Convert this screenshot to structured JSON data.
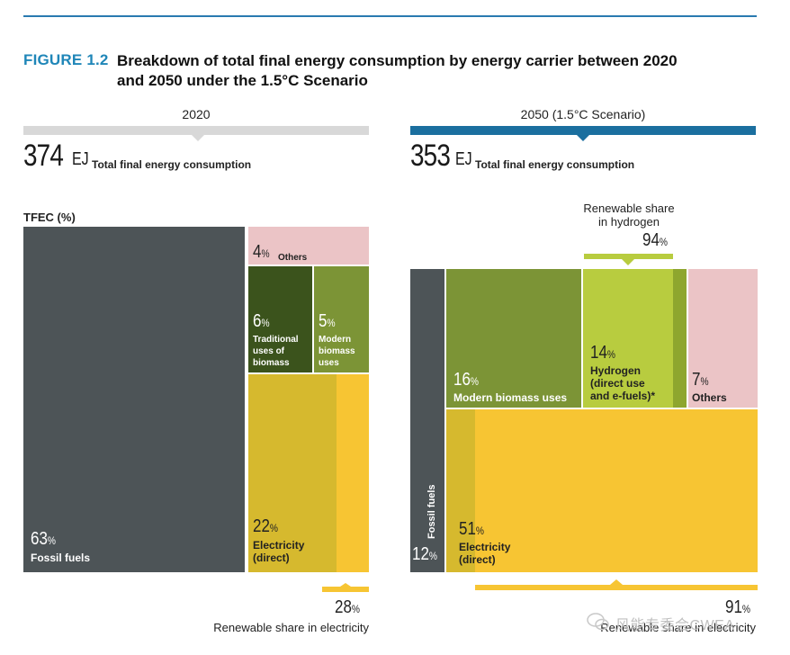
{
  "figure": {
    "label": "FIGURE 1.2",
    "title": "Breakdown of total final energy consumption by energy carrier between 2020 and 2050 under the 1.5°C Scenario"
  },
  "chart_data": [
    {
      "type": "treemap",
      "column_title": "2020",
      "total_value": "374",
      "total_unit": "EJ",
      "total_label": "Total final energy consumption",
      "axis_label": "TFEC (%)",
      "segments": [
        {
          "name": "Fossil fuels",
          "value": 63,
          "pct_text": "63"
        },
        {
          "name": "Others",
          "value": 4,
          "pct_text": "4"
        },
        {
          "name": "Traditional uses of biomass",
          "value": 6,
          "pct_text": "6"
        },
        {
          "name": "Modern biomass uses",
          "value": 5,
          "pct_text": "5"
        },
        {
          "name": "Electricity (direct)",
          "value": 22,
          "pct_text": "22"
        }
      ],
      "renewable_share_electricity": {
        "value": 28,
        "pct_text": "28",
        "label": "Renewable share in electricity"
      }
    },
    {
      "type": "treemap",
      "column_title": "2050 (1.5°C Scenario)",
      "total_value": "353",
      "total_unit": "EJ",
      "total_label": "Total final energy consumption",
      "segments": [
        {
          "name": "Fossil fuels",
          "value": 12,
          "pct_text": "12"
        },
        {
          "name": "Modern biomass uses",
          "value": 16,
          "pct_text": "16"
        },
        {
          "name": "Hydrogen (direct use and e-fuels)*",
          "value": 14,
          "pct_text": "14"
        },
        {
          "name": "Others",
          "value": 7,
          "pct_text": "7"
        },
        {
          "name": "Electricity (direct)",
          "value": 51,
          "pct_text": "51"
        }
      ],
      "renewable_share_hydrogen": {
        "value": 94,
        "pct_text": "94",
        "label_line1": "Renewable share",
        "label_line2": "in hydrogen"
      },
      "renewable_share_electricity": {
        "value": 91,
        "pct_text": "91",
        "label": "Renewable share in electricity"
      }
    }
  ],
  "labels": {
    "pct_sign": "%",
    "y2020": {
      "fossil": "Fossil fuels",
      "others": "Others",
      "trad_l1": "Traditional",
      "trad_l2": "uses of",
      "trad_l3": "biomass",
      "modern_l1": "Modern",
      "modern_l2": "biomass",
      "modern_l3": "uses",
      "elec_l1": "Electricity",
      "elec_l2": "(direct)"
    },
    "y2050": {
      "fossil": "Fossil fuels",
      "modern": "Modern biomass uses",
      "h2_l1": "Hydrogen",
      "h2_l2": "(direct use",
      "h2_l3": "and e-fuels)*",
      "others": "Others",
      "elec_l1": "Electricity",
      "elec_l2": "(direct)"
    }
  },
  "watermark": "风能专委会CWEA",
  "colors": {
    "accent_blue": "#1f86b8",
    "bar_blue": "#1b6f9f",
    "fossil": "#4d5457",
    "others": "#ebc4c6",
    "traditional_biomass": "#3b531c",
    "modern_biomass": "#7c9436",
    "hydrogen": "#b8cc3f",
    "electricity": "#f7c533",
    "electricity_renewable_2020": "#d6b92e"
  }
}
